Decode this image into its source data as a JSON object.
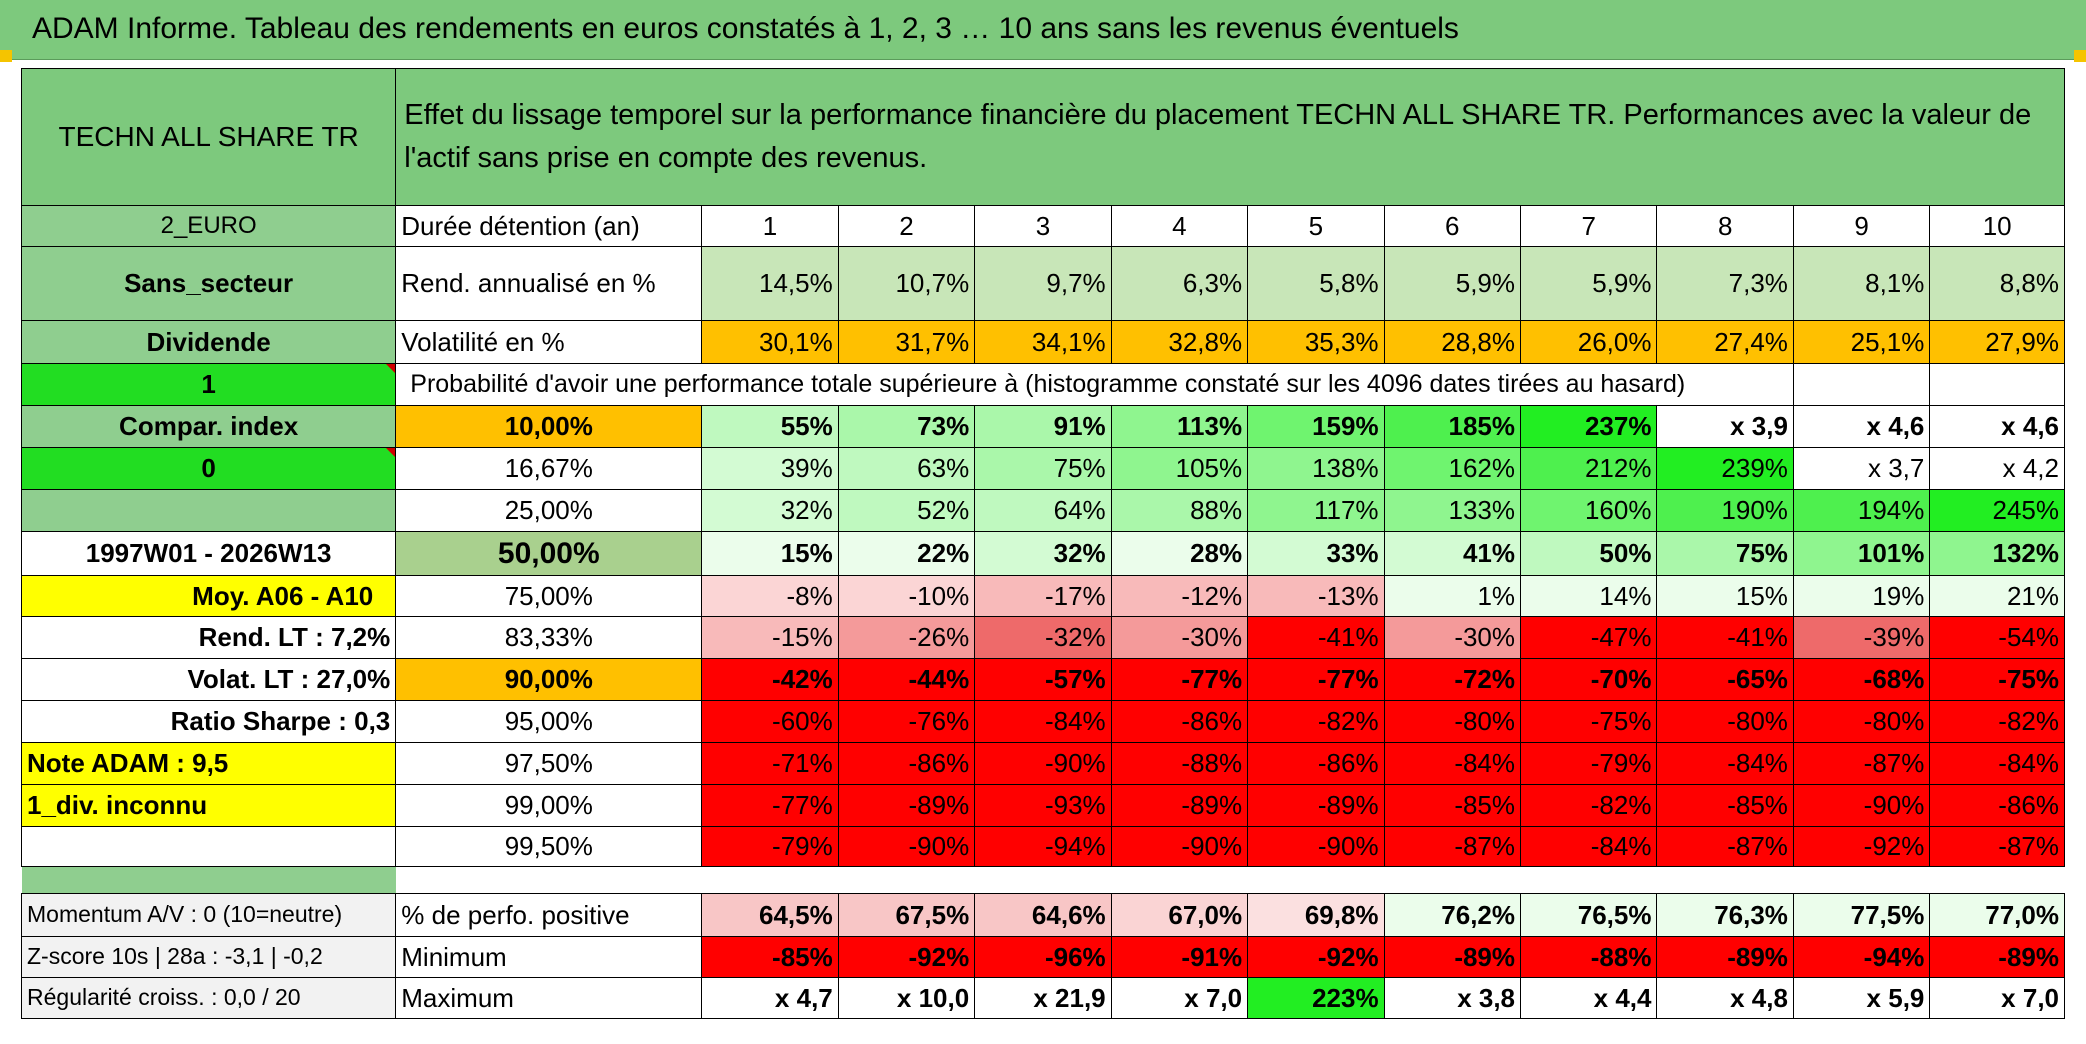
{
  "title": "ADAM Informe. Tableau des rendements en euros constatés à 1, 2, 3 … 10 ans sans les revenus éventuels",
  "header": {
    "asset_name": "TECHN ALL SHARE TR",
    "description": "Effet du lissage temporel sur la performance financière du placement TECHN ALL SHARE TR. Performances avec la valeur de l'actif sans prise en compte des revenus."
  },
  "left_panel": {
    "currency": "2_EURO",
    "sector": "Sans_secteur",
    "dividend": "Dividende",
    "flag_value": "1",
    "compar_index": "Compar. index",
    "compar_value": "0",
    "period": "1997W01 - 2026W13",
    "moy": "Moy. A06 - A10",
    "rend_lt": "Rend. LT :   7,2%",
    "volat_lt": "Volat. LT :   27,0%",
    "sharpe": "Ratio Sharpe :    0,3",
    "note": "Note ADAM : 9,5",
    "div_status": "1_div. inconnu"
  },
  "row_labels": {
    "duration": "Durée détention (an)",
    "rend": "Rend. annualisé en %",
    "volatility": "Volatilité en %",
    "probability": "Probabilité d'avoir une performance totale supérieure à (histogramme constaté sur les 4096 dates tirées au hasard)"
  },
  "durations": [
    "1",
    "2",
    "3",
    "4",
    "5",
    "6",
    "7",
    "8",
    "9",
    "10"
  ],
  "rend": [
    "14,5%",
    "10,7%",
    "9,7%",
    "6,3%",
    "5,8%",
    "5,9%",
    "5,9%",
    "7,3%",
    "8,1%",
    "8,8%"
  ],
  "volatility": [
    "30,1%",
    "31,7%",
    "34,1%",
    "32,8%",
    "35,3%",
    "28,8%",
    "26,0%",
    "27,4%",
    "25,1%",
    "27,9%"
  ],
  "quantiles": [
    {
      "label": "10,00%",
      "values": [
        "55%",
        "73%",
        "91%",
        "113%",
        "159%",
        "185%",
        "237%",
        "x 3,9",
        "x 4,6",
        "x 4,6"
      ]
    },
    {
      "label": "16,67%",
      "values": [
        "39%",
        "63%",
        "75%",
        "105%",
        "138%",
        "162%",
        "212%",
        "239%",
        "x 3,7",
        "x 4,2"
      ]
    },
    {
      "label": "25,00%",
      "values": [
        "32%",
        "52%",
        "64%",
        "88%",
        "117%",
        "133%",
        "160%",
        "190%",
        "194%",
        "245%"
      ]
    },
    {
      "label": "50,00%",
      "values": [
        "15%",
        "22%",
        "32%",
        "28%",
        "33%",
        "41%",
        "50%",
        "75%",
        "101%",
        "132%"
      ]
    },
    {
      "label": "75,00%",
      "values": [
        "-8%",
        "-10%",
        "-17%",
        "-12%",
        "-13%",
        "1%",
        "14%",
        "15%",
        "19%",
        "21%"
      ]
    },
    {
      "label": "83,33%",
      "values": [
        "-15%",
        "-26%",
        "-32%",
        "-30%",
        "-41%",
        "-30%",
        "-47%",
        "-41%",
        "-39%",
        "-54%"
      ]
    },
    {
      "label": "90,00%",
      "values": [
        "-42%",
        "-44%",
        "-57%",
        "-77%",
        "-77%",
        "-72%",
        "-70%",
        "-65%",
        "-68%",
        "-75%"
      ]
    },
    {
      "label": "95,00%",
      "values": [
        "-60%",
        "-76%",
        "-84%",
        "-86%",
        "-82%",
        "-80%",
        "-75%",
        "-80%",
        "-80%",
        "-82%"
      ]
    },
    {
      "label": "97,50%",
      "values": [
        "-71%",
        "-86%",
        "-90%",
        "-88%",
        "-86%",
        "-84%",
        "-79%",
        "-84%",
        "-87%",
        "-84%"
      ]
    },
    {
      "label": "99,00%",
      "values": [
        "-77%",
        "-89%",
        "-93%",
        "-89%",
        "-89%",
        "-85%",
        "-82%",
        "-85%",
        "-90%",
        "-86%"
      ]
    },
    {
      "label": "99,50%",
      "values": [
        "-79%",
        "-90%",
        "-94%",
        "-90%",
        "-90%",
        "-87%",
        "-84%",
        "-87%",
        "-92%",
        "-87%"
      ]
    }
  ],
  "summary": [
    {
      "left": "Momentum A/V : 0 (10=neutre)",
      "label": "% de perfo. positive",
      "values": [
        "64,5%",
        "67,5%",
        "64,6%",
        "67,0%",
        "69,8%",
        "76,2%",
        "76,5%",
        "76,3%",
        "77,5%",
        "77,0%"
      ]
    },
    {
      "left": "Z-score 10s | 28a : -3,1 | -0,2",
      "label": "Minimum",
      "values": [
        "-85%",
        "-92%",
        "-96%",
        "-91%",
        "-92%",
        "-89%",
        "-88%",
        "-89%",
        "-94%",
        "-89%"
      ]
    },
    {
      "left": "Régularité croiss. : 0,0 / 20",
      "label": "Maximum",
      "values": [
        "x 4,7",
        "x 10,0",
        "x 21,9",
        "x 7,0",
        "223%",
        "x 3,8",
        "x 4,4",
        "x 4,8",
        "x 5,9",
        "x 7,0"
      ]
    }
  ],
  "colors": {
    "header_green": "#7dc97d",
    "label_green": "#8fce8f",
    "bright_green": "#22dd22",
    "yellow": "#ffff00",
    "orange": "#ffc000",
    "red": "#ff0000",
    "light_pink": "#f8caca",
    "pink": "#f4a6a6"
  }
}
